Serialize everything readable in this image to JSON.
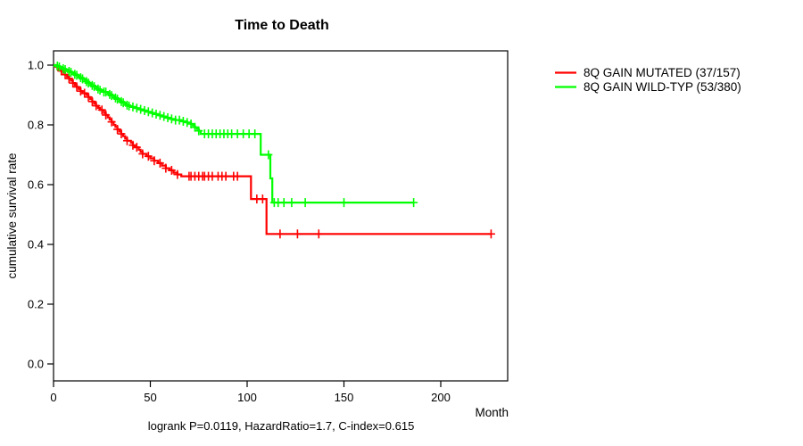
{
  "page": {
    "background": "#ffffff"
  },
  "chart_data": {
    "type": "line",
    "subtype": "kaplan-meier-step-survival",
    "title": "Time to Death",
    "xlabel": "Month",
    "ylabel": "cumulative survival rate",
    "footer": "logrank P=0.0119, HazardRatio=1.7, C-index=0.615",
    "xlim": [
      0,
      234
    ],
    "ylim": [
      0.0,
      1.0
    ],
    "x_ticks": [
      0,
      50,
      100,
      150,
      200
    ],
    "y_ticks": [
      0.0,
      0.2,
      0.4,
      0.6,
      0.8,
      1.0
    ],
    "grid": false,
    "legend_position": "right-outside",
    "frame_color": "#000000",
    "series": [
      {
        "name": "8Q GAIN MUTATED (37/157)",
        "color": "#ff0000",
        "end_month": 226,
        "steps": [
          [
            0,
            1.0
          ],
          [
            1,
            0.994
          ],
          [
            2,
            0.987
          ],
          [
            3,
            0.981
          ],
          [
            5,
            0.974
          ],
          [
            6,
            0.968
          ],
          [
            7,
            0.961
          ],
          [
            8,
            0.955
          ],
          [
            9,
            0.948
          ],
          [
            10,
            0.94
          ],
          [
            11,
            0.933
          ],
          [
            12,
            0.927
          ],
          [
            13,
            0.92
          ],
          [
            14,
            0.913
          ],
          [
            15,
            0.906
          ],
          [
            17,
            0.9
          ],
          [
            18,
            0.893
          ],
          [
            19,
            0.886
          ],
          [
            20,
            0.878
          ],
          [
            21,
            0.871
          ],
          [
            22,
            0.864
          ],
          [
            23,
            0.857
          ],
          [
            24,
            0.85
          ],
          [
            26,
            0.84
          ],
          [
            27,
            0.833
          ],
          [
            28,
            0.825
          ],
          [
            29,
            0.818
          ],
          [
            30,
            0.81
          ],
          [
            31,
            0.8
          ],
          [
            32,
            0.793
          ],
          [
            33,
            0.785
          ],
          [
            34,
            0.778
          ],
          [
            35,
            0.77
          ],
          [
            36,
            0.762
          ],
          [
            37,
            0.754
          ],
          [
            38,
            0.747
          ],
          [
            40,
            0.74
          ],
          [
            41,
            0.732
          ],
          [
            42,
            0.725
          ],
          [
            44,
            0.717
          ],
          [
            45,
            0.71
          ],
          [
            46,
            0.703
          ],
          [
            48,
            0.695
          ],
          [
            50,
            0.688
          ],
          [
            52,
            0.68
          ],
          [
            54,
            0.672
          ],
          [
            56,
            0.664
          ],
          [
            58,
            0.655
          ],
          [
            60,
            0.648
          ],
          [
            62,
            0.64
          ],
          [
            64,
            0.634
          ],
          [
            66,
            0.628
          ],
          [
            102,
            0.552
          ],
          [
            110,
            0.435
          ]
        ],
        "censor_months": [
          4,
          6,
          8,
          10,
          12,
          14,
          16,
          18,
          20,
          22,
          25,
          27,
          30,
          33,
          35,
          38,
          41,
          43,
          46,
          49,
          52,
          55,
          58,
          61,
          64,
          70,
          71,
          73,
          75,
          77,
          78,
          80,
          82,
          85,
          87,
          89,
          93,
          95,
          105,
          108,
          117,
          126,
          137,
          226
        ]
      },
      {
        "name": "8Q GAIN WILD-TYP (53/380)",
        "color": "#00ff00",
        "end_month": 186,
        "steps": [
          [
            0,
            1.0
          ],
          [
            2,
            0.997
          ],
          [
            3,
            0.994
          ],
          [
            4,
            0.991
          ],
          [
            5,
            0.988
          ],
          [
            6,
            0.985
          ],
          [
            7,
            0.982
          ],
          [
            8,
            0.979
          ],
          [
            9,
            0.976
          ],
          [
            10,
            0.973
          ],
          [
            11,
            0.969
          ],
          [
            12,
            0.966
          ],
          [
            13,
            0.962
          ],
          [
            14,
            0.958
          ],
          [
            15,
            0.954
          ],
          [
            16,
            0.95
          ],
          [
            17,
            0.945
          ],
          [
            18,
            0.94
          ],
          [
            19,
            0.936
          ],
          [
            20,
            0.932
          ],
          [
            21,
            0.928
          ],
          [
            22,
            0.924
          ],
          [
            23,
            0.92
          ],
          [
            24,
            0.916
          ],
          [
            25,
            0.913
          ],
          [
            26,
            0.91
          ],
          [
            28,
            0.906
          ],
          [
            29,
            0.902
          ],
          [
            30,
            0.898
          ],
          [
            31,
            0.894
          ],
          [
            32,
            0.89
          ],
          [
            33,
            0.886
          ],
          [
            34,
            0.882
          ],
          [
            35,
            0.878
          ],
          [
            36,
            0.874
          ],
          [
            37,
            0.87
          ],
          [
            38,
            0.866
          ],
          [
            39,
            0.863
          ],
          [
            40,
            0.86
          ],
          [
            42,
            0.856
          ],
          [
            44,
            0.852
          ],
          [
            46,
            0.848
          ],
          [
            48,
            0.844
          ],
          [
            50,
            0.84
          ],
          [
            52,
            0.836
          ],
          [
            54,
            0.832
          ],
          [
            56,
            0.828
          ],
          [
            58,
            0.824
          ],
          [
            60,
            0.82
          ],
          [
            63,
            0.816
          ],
          [
            66,
            0.812
          ],
          [
            69,
            0.808
          ],
          [
            71,
            0.803
          ],
          [
            72,
            0.798
          ],
          [
            73,
            0.792
          ],
          [
            74,
            0.786
          ],
          [
            75,
            0.78
          ],
          [
            76,
            0.77
          ],
          [
            107,
            0.7
          ],
          [
            112,
            0.621
          ],
          [
            113,
            0.54
          ]
        ],
        "censor_months": [
          2,
          3,
          5,
          6,
          8,
          9,
          11,
          12,
          14,
          15,
          17,
          18,
          20,
          21,
          23,
          24,
          26,
          27,
          29,
          30,
          32,
          33,
          35,
          36,
          38,
          39,
          41,
          43,
          45,
          47,
          49,
          51,
          53,
          55,
          57,
          59,
          61,
          63,
          65,
          67,
          69,
          71,
          73,
          75,
          78,
          80,
          82,
          84,
          86,
          88,
          90,
          92,
          95,
          98,
          101,
          104,
          111,
          114,
          116,
          119,
          123,
          130,
          150,
          186
        ]
      }
    ]
  }
}
